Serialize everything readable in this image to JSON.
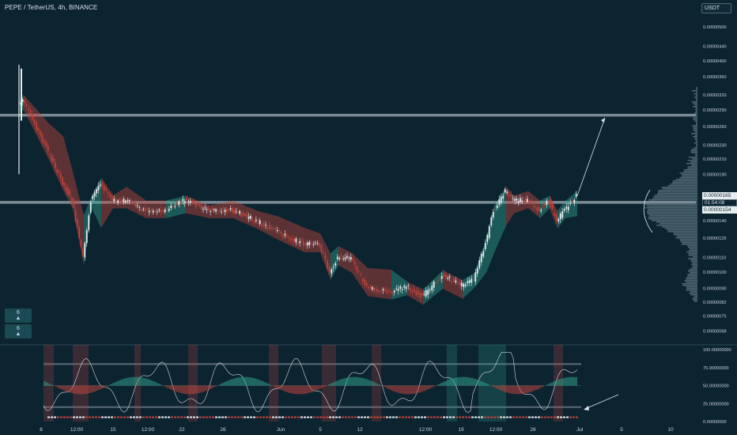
{
  "header": {
    "title": "PEPE / TetherUS, 4h, BINANCE",
    "currency": "USDT"
  },
  "side_buttons": [
    {
      "value": "6",
      "icon": "triangle-up-icon"
    },
    {
      "value": "6",
      "icon": "triangle-up-icon"
    }
  ],
  "price_tags": {
    "upper": "0.00000165",
    "countdown": "01:54:08",
    "lower": "0.00000154"
  },
  "colors": {
    "background": "#0c2330",
    "bullish": "#2f9e8a",
    "bearish": "#c0453c",
    "candle_up": "#e8eef0",
    "candle_down": "#b8433b",
    "level_line": "#aab8bf",
    "arrow": "#dfe7ea"
  },
  "chart_data": [
    {
      "type": "candlestick",
      "title": "PEPE / TetherUS, 4h, BINANCE",
      "y_scale": "log",
      "price_axis_labels": [
        "0.00000500",
        "0.00000440",
        "0.00000400",
        "0.00000360",
        "0.00000320",
        "0.00000290",
        "0.00000260",
        "0.00000230",
        "0.00000210",
        "0.00000190",
        "0.00000165",
        "0.00000154",
        "0.00000140",
        "0.00000125",
        "0.00000110",
        "0.00000100",
        "0.00000090",
        "0.00000082",
        "0.00000075",
        "0.00000068"
      ],
      "time_axis_labels": [
        "8",
        "12:00",
        "15",
        "12:00",
        "22",
        "26",
        "Jun",
        "5",
        "12",
        "12:00",
        "19",
        "12:00",
        "26",
        "Jul",
        "5",
        "10"
      ],
      "horizontal_levels": [
        2.8e-06,
        1.58e-06
      ],
      "close_path": [
        {
          "x": "May 8",
          "y": 3e-06
        },
        {
          "x": "May 8 12:00",
          "y": 3.1e-06
        },
        {
          "x": "May 9",
          "y": 2.2e-06
        },
        {
          "x": "May 10",
          "y": 1.8e-06
        },
        {
          "x": "May 11",
          "y": 1.6e-06
        },
        {
          "x": "May 12",
          "y": 1.1e-06
        },
        {
          "x": "May 13",
          "y": 1.6e-06
        },
        {
          "x": "May 14",
          "y": 1.8e-06
        },
        {
          "x": "May 15",
          "y": 1.6e-06
        },
        {
          "x": "May 16",
          "y": 1.6e-06
        },
        {
          "x": "May 18",
          "y": 1.5e-06
        },
        {
          "x": "May 20",
          "y": 1.5e-06
        },
        {
          "x": "May 22",
          "y": 1.6e-06
        },
        {
          "x": "May 24",
          "y": 1.5e-06
        },
        {
          "x": "May 26",
          "y": 1.5e-06
        },
        {
          "x": "May 28",
          "y": 1.4e-06
        },
        {
          "x": "May 30",
          "y": 1.3e-06
        },
        {
          "x": "Jun 1",
          "y": 1.2e-06
        },
        {
          "x": "Jun 3",
          "y": 1.2e-06
        },
        {
          "x": "Jun 5",
          "y": 1e-06
        },
        {
          "x": "Jun 6",
          "y": 1.1e-06
        },
        {
          "x": "Jun 8",
          "y": 1.1e-06
        },
        {
          "x": "Jun 10",
          "y": 9e-07
        },
        {
          "x": "Jun 12",
          "y": 8.8e-07
        },
        {
          "x": "Jun 14",
          "y": 9.1e-07
        },
        {
          "x": "Jun 15",
          "y": 8.5e-07
        },
        {
          "x": "Jun 16",
          "y": 9.8e-07
        },
        {
          "x": "Jun 18",
          "y": 9.2e-07
        },
        {
          "x": "Jun 20",
          "y": 9.5e-07
        },
        {
          "x": "Jun 21",
          "y": 1.2e-06
        },
        {
          "x": "Jun 22",
          "y": 1.5e-06
        },
        {
          "x": "Jun 23",
          "y": 1.7e-06
        },
        {
          "x": "Jun 24",
          "y": 1.6e-06
        },
        {
          "x": "Jun 25",
          "y": 1.6e-06
        },
        {
          "x": "Jun 26",
          "y": 1.5e-06
        },
        {
          "x": "Jun 27",
          "y": 1.6e-06
        },
        {
          "x": "Jun 28",
          "y": 1.4e-06
        },
        {
          "x": "Jun 29",
          "y": 1.5e-06
        },
        {
          "x": "Jun 30",
          "y": 1.65e-06
        }
      ],
      "projection": {
        "from": {
          "x": "Jun 30",
          "y": 1.65e-06
        },
        "to": {
          "x": "Jul 2",
          "y": 2.75e-06
        }
      }
    },
    {
      "type": "line",
      "y_axis_labels": [
        "100.00000000",
        "75.00000000",
        "50.00000000",
        "25.00000000",
        "0.00000000"
      ],
      "ylim": [
        0,
        100
      ],
      "levels": [
        80,
        50,
        20
      ]
    }
  ]
}
